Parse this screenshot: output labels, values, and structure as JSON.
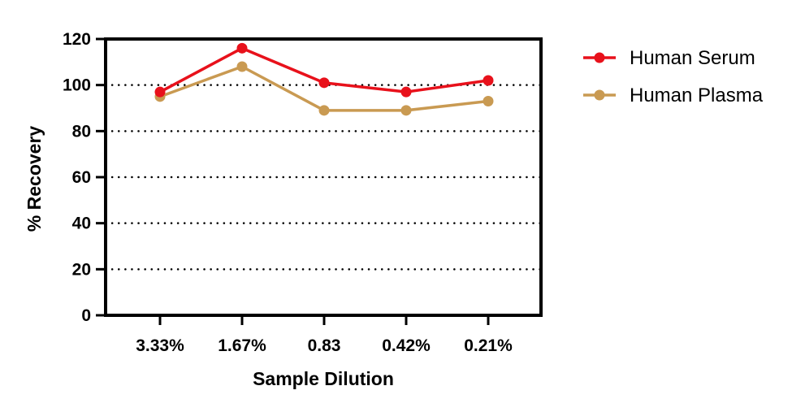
{
  "chart_data": {
    "type": "line",
    "title": "",
    "xlabel": "Sample Dilution",
    "ylabel": "% Recovery",
    "categories": [
      "3.33%",
      "1.67%",
      "0.83",
      "0.42%",
      "0.21%"
    ],
    "ylim": [
      0,
      120
    ],
    "yticks": [
      0,
      20,
      40,
      60,
      80,
      100,
      120
    ],
    "grid": "horizontal dotted",
    "legend": "right",
    "series": [
      {
        "name": "Human Serum",
        "color": "#e8111b",
        "values": [
          97,
          116,
          101,
          97,
          102
        ]
      },
      {
        "name": "Human Plasma",
        "color": "#c99a52",
        "values": [
          95,
          108,
          89,
          89,
          93
        ]
      }
    ]
  }
}
